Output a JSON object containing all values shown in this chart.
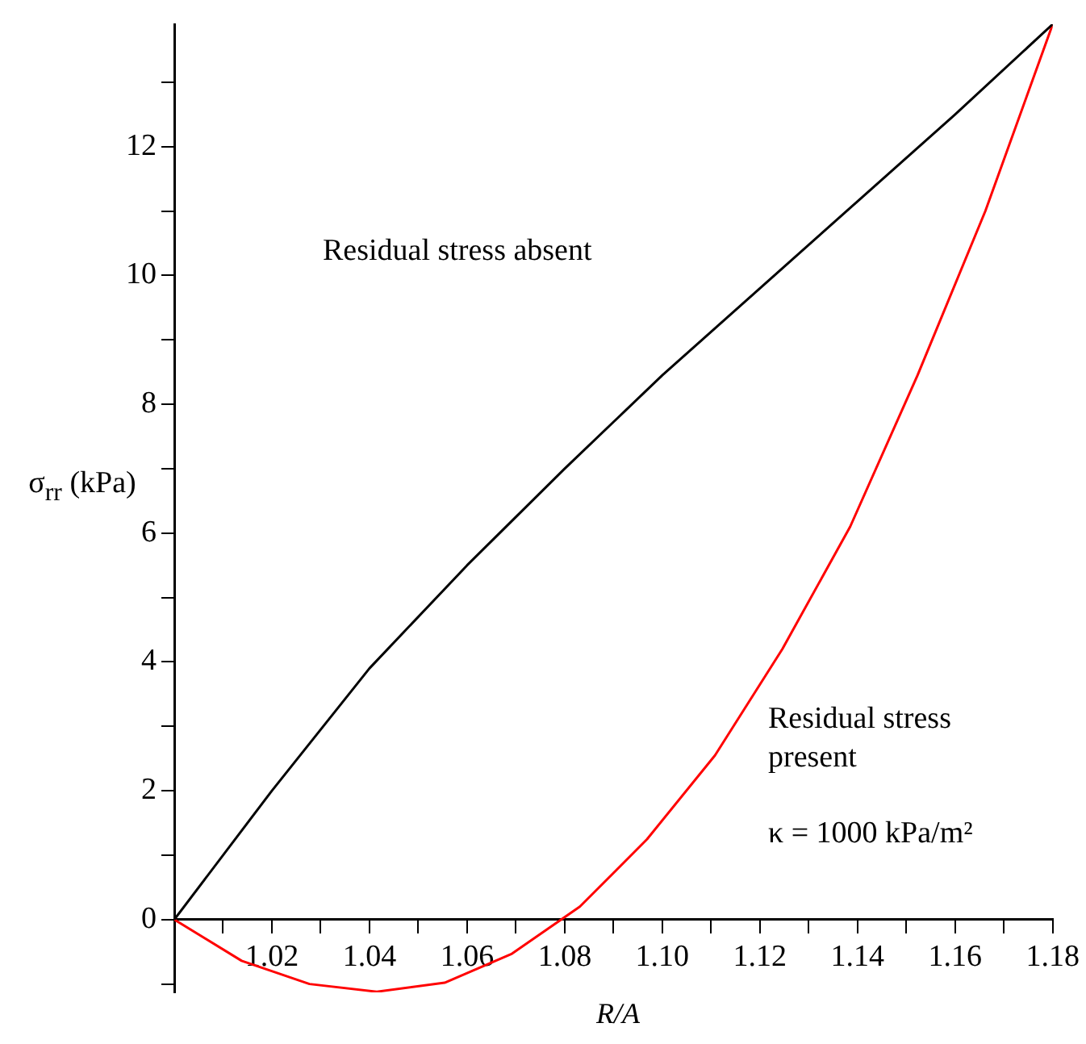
{
  "chart_data": {
    "type": "line",
    "xlabel": "R/A",
    "ylabel": "σ$_{rr}$ (kPa)",
    "annotations": [
      "Residual stress absent",
      "Residual stress present",
      "κ = 1000 kPa/m²"
    ],
    "series": [
      {
        "color": "#000000",
        "x": [
          1.0,
          1.02,
          1.04,
          1.06,
          1.08,
          1.1,
          1.12,
          1.14,
          1.16,
          1.18
        ],
        "values": [
          0,
          2.0,
          3.9,
          5.5,
          7.0,
          8.45,
          9.8,
          11.15,
          12.5,
          13.9
        ]
      },
      {
        "color": "#ff0000",
        "x": [
          1.0,
          1.0138,
          1.0277,
          1.0415,
          1.0554,
          1.0692,
          1.0831,
          1.0969,
          1.1108,
          1.1246,
          1.1385,
          1.1523,
          1.1662,
          1.18
        ],
        "values": [
          0,
          -0.64,
          -1.0,
          -1.12,
          -0.98,
          -0.53,
          0.2,
          1.25,
          2.55,
          4.2,
          6.1,
          8.45,
          11.0,
          13.9
        ]
      }
    ],
    "xlim": [
      1.0,
      1.18
    ],
    "ylim": [
      -1.13,
      13.9
    ],
    "xticks": [
      {
        "value": 1.0,
        "label": null
      },
      {
        "value": 1.01,
        "label": null
      },
      1.02,
      {
        "value": 1.03,
        "label": null
      },
      1.04,
      {
        "value": 1.05,
        "label": null
      },
      1.06,
      {
        "value": 1.07,
        "label": null
      },
      1.08,
      {
        "value": 1.09,
        "label": null
      },
      {
        "value": 1.1,
        "label": "1.10"
      },
      {
        "value": 1.11,
        "label": null
      },
      1.12,
      {
        "value": 1.13,
        "label": null
      },
      1.14,
      {
        "value": 1.15,
        "label": null
      },
      1.16,
      {
        "value": 1.17,
        "label": null
      },
      1.18
    ],
    "yticks": [
      {
        "value": -1,
        "label": null
      },
      0,
      {
        "value": 1,
        "label": null
      },
      2,
      {
        "value": 3,
        "label": null
      },
      4,
      {
        "value": 5,
        "label": null
      },
      6,
      {
        "value": 7,
        "label": null
      },
      8,
      {
        "value": 9,
        "label": null
      },
      10,
      {
        "value": 11,
        "label": null
      },
      12,
      {
        "value": 13,
        "label": null
      }
    ],
    "grid": false,
    "legend": false,
    "marker": "none",
    "line_style": "solid"
  }
}
